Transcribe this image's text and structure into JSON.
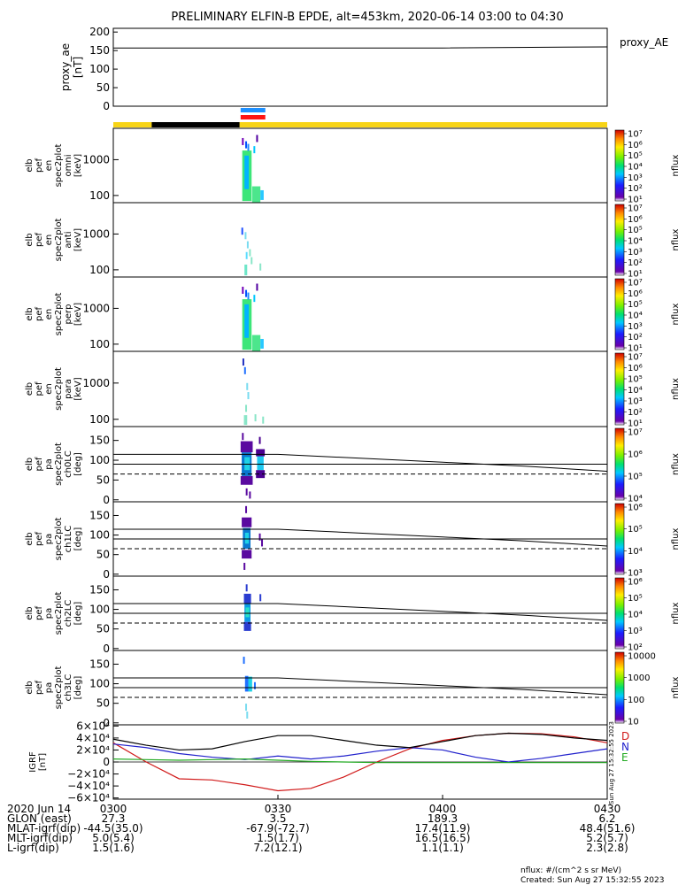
{
  "title": "PRELIMINARY ELFIN-B EPDE, alt=453km, 2020-06-14 03:00 to 04:30",
  "creation": {
    "units_note": "nflux: #/(cm^2 s sr MeV)",
    "created": "Created: Sun Aug 27 15:32:55 2023",
    "vertical_stamp": "Sun Aug 27 15:32:55 2023"
  },
  "colors": {
    "sun_bar": "#f7d417",
    "shadow_bar": "#000000",
    "sci_blue": "#1e90ff",
    "sci_red": "#ff1414",
    "igrf_D": "#d11a1a",
    "igrf_N": "#2222cc",
    "igrf_E": "#22aa22"
  },
  "chart_data": [
    {
      "id": "proxy_ae",
      "type": "line",
      "ylabel": [
        "proxy_ae",
        "[nT]"
      ],
      "legend": "proxy_AE",
      "ylim": [
        0,
        210
      ],
      "yticks": [
        "0",
        "50",
        "100",
        "150",
        "200"
      ],
      "yticks_vals": [
        0,
        50,
        100,
        150,
        200
      ],
      "x": [
        0,
        30,
        60,
        90
      ],
      "values": [
        157,
        157,
        157,
        160
      ]
    },
    {
      "id": "orbit_bars",
      "type": "bar",
      "x": [
        0,
        90
      ],
      "sunlight_segments": [
        [
          0,
          7
        ],
        [
          23,
          90
        ]
      ],
      "shadow_segments": [
        [
          7,
          23
        ]
      ],
      "science_segments": [
        [
          23.2,
          27.7
        ]
      ]
    },
    {
      "id": "en_omni",
      "type": "heatmap",
      "ylabel": [
        "elb",
        "pef",
        "en",
        "spec2plot",
        "omni",
        "[keV]"
      ],
      "ytick_labels": [
        "1000",
        "100"
      ],
      "yticks_vals": [
        1000,
        100
      ],
      "ylim_log": [
        63,
        7500
      ],
      "cbar_label": "nflux",
      "cbar_ticks": [
        "10⁷",
        "10⁶",
        "10⁵",
        "10⁴",
        "10³",
        "10²",
        "10¹"
      ],
      "cbar_log": [
        1,
        7
      ],
      "blobs": [
        {
          "x": [
            23.5,
            25.2
          ],
          "e": [
            70,
            1800
          ],
          "color": "#3ce678"
        },
        {
          "x": [
            23.9,
            24.7
          ],
          "e": [
            150,
            1300
          ],
          "color": "#00b4ff"
        },
        {
          "x": [
            25.3,
            26.8
          ],
          "e": [
            65,
            180
          ],
          "color": "#4ce68c"
        },
        {
          "x": [
            26.8,
            27.4
          ],
          "e": [
            75,
            140
          ],
          "color": "#28c8ff"
        }
      ],
      "specks": [
        {
          "x": 23.6,
          "e": 3200,
          "color": "#7000b8"
        },
        {
          "x": 24.2,
          "e": 2600,
          "color": "#0050ff"
        },
        {
          "x": 24.6,
          "e": 2200,
          "color": "#1e8cff"
        },
        {
          "x": 25.7,
          "e": 1900,
          "color": "#00c8ff"
        },
        {
          "x": 26.2,
          "e": 3900,
          "color": "#5000a0"
        }
      ]
    },
    {
      "id": "en_anti",
      "type": "heatmap",
      "ylabel": [
        "elb",
        "pef",
        "en",
        "spec2plot",
        "anti",
        "[keV]"
      ],
      "ytick_labels": [
        "1000",
        "100"
      ],
      "yticks_vals": [
        1000,
        100
      ],
      "ylim_log": [
        63,
        7500
      ],
      "cbar_label": "nflux",
      "cbar_ticks": [
        "10⁷",
        "10⁶",
        "10⁵",
        "10⁴",
        "10³",
        "10²",
        "10¹"
      ],
      "cbar_log": [
        1,
        7
      ],
      "blobs": [
        {
          "x": [
            23.9,
            24.4
          ],
          "e": [
            70,
            140
          ],
          "color": "#6ee6c8"
        }
      ],
      "specks": [
        {
          "x": 23.5,
          "e": 1200,
          "color": "#2050ff"
        },
        {
          "x": 24.1,
          "e": 900,
          "color": "#7adcf0"
        },
        {
          "x": 24.5,
          "e": 500,
          "color": "#7adcf0"
        },
        {
          "x": 24.9,
          "e": 300,
          "color": "#8ae6c8"
        },
        {
          "x": 25.2,
          "e": 180,
          "color": "#8ae6c8"
        },
        {
          "x": 26.8,
          "e": 120,
          "color": "#8ae6c8"
        },
        {
          "x": 24.3,
          "e": 250,
          "color": "#5adcff"
        }
      ]
    },
    {
      "id": "en_perp",
      "type": "heatmap",
      "ylabel": [
        "elb",
        "pef",
        "en",
        "spec2plot",
        "perp",
        "[keV]"
      ],
      "ytick_labels": [
        "1000",
        "100"
      ],
      "yticks_vals": [
        1000,
        100
      ],
      "ylim_log": [
        63,
        7500
      ],
      "cbar_label": "nflux",
      "cbar_ticks": [
        "10⁷",
        "10⁶",
        "10⁵",
        "10⁴",
        "10³",
        "10²",
        "10¹"
      ],
      "cbar_log": [
        1,
        7
      ],
      "blobs": [
        {
          "x": [
            23.5,
            25.2
          ],
          "e": [
            70,
            1800
          ],
          "color": "#3ce678"
        },
        {
          "x": [
            23.9,
            24.7
          ],
          "e": [
            150,
            1300
          ],
          "color": "#00b4ff"
        },
        {
          "x": [
            25.3,
            26.8
          ],
          "e": [
            65,
            180
          ],
          "color": "#4ce68c"
        },
        {
          "x": [
            26.8,
            27.4
          ],
          "e": [
            75,
            140
          ],
          "color": "#28c8ff"
        }
      ],
      "specks": [
        {
          "x": 23.6,
          "e": 3200,
          "color": "#7000b8"
        },
        {
          "x": 24.2,
          "e": 2600,
          "color": "#0050ff"
        },
        {
          "x": 24.6,
          "e": 2200,
          "color": "#1e8cff"
        },
        {
          "x": 25.7,
          "e": 1900,
          "color": "#00c8ff"
        },
        {
          "x": 26.2,
          "e": 3900,
          "color": "#5000a0"
        }
      ]
    },
    {
      "id": "en_para",
      "type": "heatmap",
      "ylabel": [
        "elb",
        "pef",
        "en",
        "spec2plot",
        "para",
        "[keV]"
      ],
      "ytick_labels": [
        "1000",
        "100"
      ],
      "yticks_vals": [
        1000,
        100
      ],
      "ylim_log": [
        63,
        7500
      ],
      "cbar_label": "nflux",
      "cbar_ticks": [
        "10⁷",
        "10⁶",
        "10⁵",
        "10⁴",
        "10³",
        "10²",
        "10¹"
      ],
      "cbar_log": [
        1,
        7
      ],
      "blobs": [
        {
          "x": [
            23.8,
            24.4
          ],
          "e": [
            70,
            130
          ],
          "color": "#8ae6c8"
        }
      ],
      "specks": [
        {
          "x": 23.7,
          "e": 3800,
          "color": "#2030c0"
        },
        {
          "x": 24.0,
          "e": 2200,
          "color": "#2070ff"
        },
        {
          "x": 24.4,
          "e": 800,
          "color": "#7adcf0"
        },
        {
          "x": 24.6,
          "e": 450,
          "color": "#7adcf0"
        },
        {
          "x": 24.2,
          "e": 200,
          "color": "#8ae6c8"
        },
        {
          "x": 25.9,
          "e": 110,
          "color": "#8ae6c8"
        },
        {
          "x": 27.3,
          "e": 95,
          "color": "#8ae6c8"
        }
      ]
    },
    {
      "id": "pa_ch0",
      "type": "heatmap",
      "ylabel": [
        "elb",
        "pef",
        "pa",
        "spec2plot",
        "ch0LC",
        "[deg]"
      ],
      "yticks": [
        "0",
        "50",
        "100",
        "150"
      ],
      "yticks_vals": [
        0,
        50,
        100,
        150
      ],
      "ylim": [
        -5,
        185
      ],
      "cbar_label": "nflux",
      "cbar_ticks": [
        "10⁷",
        "10⁶",
        "10⁵",
        "10⁴"
      ],
      "cbar_log": [
        3.3,
        7
      ],
      "x": [
        0,
        24,
        30,
        45,
        60,
        75,
        90
      ],
      "lc_upper": [
        115,
        115,
        115,
        105,
        95,
        85,
        72
      ],
      "lc_lower": [
        65,
        65,
        65,
        65,
        65,
        65,
        65
      ],
      "lc_mid": [
        90,
        90,
        90,
        90,
        90,
        90,
        90
      ],
      "blobs": [
        {
          "x": [
            23.4,
            25.2
          ],
          "p": [
            60,
            120
          ],
          "color": "#0a78d0"
        },
        {
          "x": [
            23.9,
            24.9
          ],
          "p": [
            75,
            108
          ],
          "color": "#1ed2e6"
        },
        {
          "x": [
            26.2,
            27.4
          ],
          "p": [
            75,
            110
          ],
          "color": "#1ec8f0"
        },
        {
          "x": [
            23.2,
            25.4
          ],
          "p": [
            38,
            60
          ],
          "color": "#5a0aa0"
        },
        {
          "x": [
            23.2,
            25.4
          ],
          "p": [
            120,
            148
          ],
          "color": "#5a0aa0"
        },
        {
          "x": [
            26.0,
            27.6
          ],
          "p": [
            55,
            75
          ],
          "color": "#4a0090"
        },
        {
          "x": [
            26.0,
            27.6
          ],
          "p": [
            110,
            128
          ],
          "color": "#4a0090"
        }
      ],
      "specks": [
        {
          "x": 23.6,
          "p": 160,
          "color": "#5a0aa0"
        },
        {
          "x": 24.3,
          "p": 20,
          "color": "#5a0aa0"
        },
        {
          "x": 24.9,
          "p": 12,
          "color": "#5a0aa0"
        },
        {
          "x": 26.7,
          "p": 150,
          "color": "#4a0090"
        }
      ]
    },
    {
      "id": "pa_ch1",
      "type": "heatmap",
      "ylabel": [
        "elb",
        "pef",
        "pa",
        "spec2plot",
        "ch1LC",
        "[deg]"
      ],
      "yticks": [
        "0",
        "50",
        "100",
        "150"
      ],
      "yticks_vals": [
        0,
        50,
        100,
        150
      ],
      "ylim": [
        -5,
        185
      ],
      "cbar_label": "nflux",
      "cbar_ticks": [
        "10⁶",
        "10⁵",
        "10⁴",
        "10³"
      ],
      "cbar_log": [
        2.5,
        6.5
      ],
      "x": [
        0,
        24,
        30,
        45,
        60,
        75,
        90
      ],
      "lc_upper": [
        115,
        115,
        115,
        105,
        95,
        85,
        72
      ],
      "lc_lower": [
        65,
        65,
        65,
        65,
        65,
        65,
        65
      ],
      "lc_mid": [
        90,
        90,
        90,
        90,
        90,
        90,
        90
      ],
      "blobs": [
        {
          "x": [
            23.6,
            25.0
          ],
          "p": [
            65,
            118
          ],
          "color": "#0a78d0"
        },
        {
          "x": [
            24.0,
            24.7
          ],
          "p": [
            78,
            106
          ],
          "color": "#1ed2e6"
        },
        {
          "x": [
            23.4,
            25.2
          ],
          "p": [
            40,
            62
          ],
          "color": "#5a0aa0"
        },
        {
          "x": [
            23.4,
            25.2
          ],
          "p": [
            120,
            145
          ],
          "color": "#5a0aa0"
        }
      ],
      "specks": [
        {
          "x": 24.2,
          "p": 165,
          "color": "#5a0aa0"
        },
        {
          "x": 23.9,
          "p": 20,
          "color": "#5a0aa0"
        },
        {
          "x": 26.7,
          "p": 95,
          "color": "#5a0aa0"
        },
        {
          "x": 27.1,
          "p": 80,
          "color": "#5a0aa0"
        }
      ]
    },
    {
      "id": "pa_ch2",
      "type": "heatmap",
      "ylabel": [
        "elb",
        "pef",
        "pa",
        "spec2plot",
        "ch2LC",
        "[deg]"
      ],
      "yticks": [
        "0",
        "50",
        "100",
        "150"
      ],
      "yticks_vals": [
        0,
        50,
        100,
        150
      ],
      "ylim": [
        -5,
        185
      ],
      "cbar_label": "nflux",
      "cbar_ticks": [
        "10⁶",
        "10⁵",
        "10⁴",
        "10³",
        "10²"
      ],
      "cbar_log": [
        1.6,
        6.5
      ],
      "x": [
        0,
        24,
        30,
        45,
        60,
        75,
        90
      ],
      "lc_upper": [
        115,
        115,
        115,
        105,
        95,
        85,
        72
      ],
      "lc_lower": [
        65,
        65,
        65,
        65,
        65,
        65,
        65
      ],
      "lc_mid": [
        90,
        90,
        90,
        90,
        90,
        90,
        90
      ],
      "blobs": [
        {
          "x": [
            23.9,
            25.0
          ],
          "p": [
            68,
            115
          ],
          "color": "#0a9be6"
        },
        {
          "x": [
            24.1,
            24.8
          ],
          "p": [
            80,
            105
          ],
          "color": "#28e0c8"
        },
        {
          "x": [
            23.8,
            25.1
          ],
          "p": [
            45,
            68
          ],
          "color": "#2a3cd0"
        },
        {
          "x": [
            23.8,
            25.1
          ],
          "p": [
            115,
            140
          ],
          "color": "#2a3cd0"
        }
      ],
      "specks": [
        {
          "x": 24.3,
          "p": 155,
          "color": "#2a3cd0"
        },
        {
          "x": 26.8,
          "p": 130,
          "color": "#2a3cd0"
        }
      ]
    },
    {
      "id": "pa_ch3",
      "type": "heatmap",
      "ylabel": [
        "elb",
        "pef",
        "pa",
        "spec2plot",
        "ch3LC",
        "[deg]"
      ],
      "yticks": [
        "0",
        "50",
        "100",
        "150"
      ],
      "yticks_vals": [
        0,
        50,
        100,
        150
      ],
      "ylim": [
        -5,
        185
      ],
      "cbar_label": "nflux",
      "cbar_ticks": [
        "10000",
        "1000",
        "100",
        "10"
      ],
      "cbar_log": [
        1,
        4
      ],
      "x": [
        0,
        24,
        30,
        45,
        60,
        75,
        90
      ],
      "lc_upper": [
        115,
        115,
        115,
        105,
        95,
        85,
        72
      ],
      "lc_lower": [
        65,
        65,
        65,
        65,
        65,
        65,
        65
      ],
      "lc_mid": [
        90,
        90,
        90,
        90,
        90,
        90,
        90
      ],
      "blobs": [
        {
          "x": [
            24.0,
            24.6
          ],
          "p": [
            80,
            120
          ],
          "color": "#2070ff"
        },
        {
          "x": [
            24.6,
            25.3
          ],
          "p": [
            80,
            118
          ],
          "color": "#1ed2e6"
        }
      ],
      "specks": [
        {
          "x": 23.8,
          "p": 160,
          "color": "#2070ff"
        },
        {
          "x": 24.2,
          "p": 40,
          "color": "#7adcf0"
        },
        {
          "x": 24.4,
          "p": 20,
          "color": "#7adcf0"
        },
        {
          "x": 25.8,
          "p": 95,
          "color": "#2070ff"
        }
      ]
    },
    {
      "id": "igrf",
      "type": "line",
      "ylabel": [
        "IGRF",
        "[nT]"
      ],
      "yticks": [
        "6×10⁴",
        "4×10⁴",
        "2×10⁴",
        "0",
        "−2×10⁴",
        "−4×10⁴",
        "−6×10⁴"
      ],
      "yticks_vals": [
        60000,
        40000,
        20000,
        0,
        -20000,
        -40000,
        -60000
      ],
      "ylim": [
        -62000,
        62000
      ],
      "x": [
        0,
        6,
        12,
        18,
        24,
        30,
        36,
        42,
        48,
        54,
        60,
        66,
        72,
        78,
        84,
        90
      ],
      "series": [
        {
          "name": "D",
          "color": "#d11a1a",
          "values": [
            32000,
            0,
            -28000,
            -30000,
            -38000,
            -48000,
            -44000,
            -25000,
            0,
            22000,
            36000,
            44000,
            48000,
            47000,
            42000,
            32000
          ]
        },
        {
          "name": "N",
          "color": "#2222cc",
          "values": [
            30000,
            24000,
            14000,
            8000,
            4000,
            10000,
            5000,
            10000,
            18000,
            24000,
            20000,
            8000,
            0,
            6000,
            14000,
            22000
          ]
        },
        {
          "name": "E",
          "color": "#22aa22",
          "values": [
            5000,
            4000,
            3000,
            4000,
            5000,
            3000,
            1000,
            0,
            -1000,
            -1000,
            -1000,
            -1000,
            -1000,
            -1000,
            -1000,
            -1000
          ]
        },
        {
          "name": "total",
          "color": "#000000",
          "values": [
            38000,
            28000,
            20000,
            22000,
            34000,
            44000,
            44000,
            36000,
            28000,
            24000,
            34000,
            44000,
            48000,
            46000,
            40000,
            36000
          ]
        }
      ]
    }
  ],
  "axis_table": {
    "rows": [
      {
        "label": "2020 Jun 14",
        "values": [
          "0300",
          "0330",
          "0400",
          "0430"
        ]
      },
      {
        "label": "GLON (east)",
        "values": [
          "27.3",
          "3.5",
          "189.3",
          "6.2"
        ]
      },
      {
        "label": "MLAT-igrf(dip)",
        "values": [
          "-44.5(35.0)",
          "-67.9(-72.7)",
          "17.4(11.9)",
          "48.4(51.6)"
        ]
      },
      {
        "label": "MLT-igrf(dip)",
        "values": [
          "5.0(5.4)",
          "1.5(1.7)",
          "16.5(16.5)",
          "5.2(5.7)"
        ]
      },
      {
        "label": "L-igrf(dip)",
        "values": [
          "1.5(1.6)",
          "7.2(12.1)",
          "1.1(1.1)",
          "2.3(2.8)"
        ]
      }
    ]
  }
}
